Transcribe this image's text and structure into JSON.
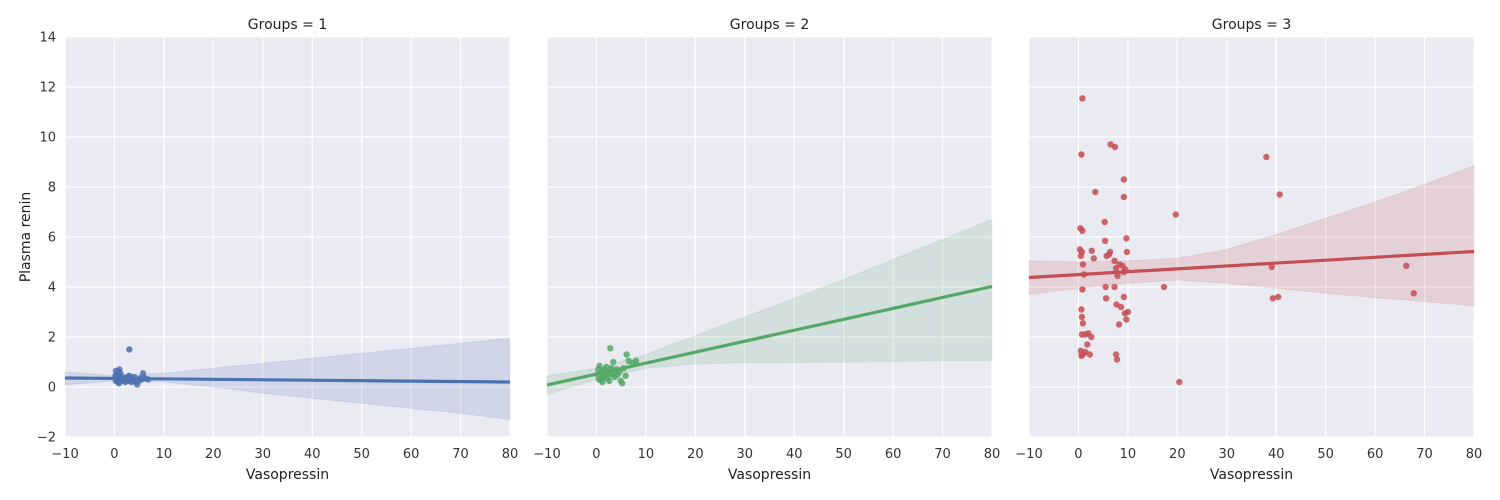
{
  "chart_data": {
    "type": "scatter",
    "ylabel": "Plasma renin",
    "xlim": [
      -10,
      80
    ],
    "ylim": [
      -2,
      14
    ],
    "x_ticks": [
      -10,
      0,
      10,
      20,
      30,
      40,
      50,
      60,
      70,
      80
    ],
    "y_ticks": [
      -2,
      0,
      2,
      4,
      6,
      8,
      10,
      12,
      14
    ],
    "grid": true,
    "panels": [
      {
        "title": "Groups = 1",
        "xlabel": "Vasopressin",
        "color": "#4c72b0",
        "fit_line": {
          "x": [
            -10,
            80
          ],
          "y": [
            0.36,
            0.2
          ]
        },
        "ci_band": {
          "x": [
            -10,
            0,
            10,
            20,
            30,
            40,
            50,
            60,
            70,
            80
          ],
          "lower": [
            0.08,
            0.25,
            0.2,
            0.0,
            -0.25,
            -0.45,
            -0.65,
            -0.85,
            -1.05,
            -1.3
          ],
          "upper": [
            0.6,
            0.45,
            0.55,
            0.75,
            0.95,
            1.15,
            1.35,
            1.55,
            1.75,
            1.95
          ]
        },
        "points": [
          [
            0.3,
            0.25
          ],
          [
            0.5,
            0.3
          ],
          [
            0.6,
            0.4
          ],
          [
            0.4,
            0.5
          ],
          [
            0.8,
            0.6
          ],
          [
            0.3,
            0.65
          ],
          [
            1.0,
            0.7
          ],
          [
            1.2,
            0.55
          ],
          [
            0.7,
            0.2
          ],
          [
            0.9,
            0.15
          ],
          [
            1.5,
            0.3
          ],
          [
            1.8,
            0.25
          ],
          [
            1.1,
            0.35
          ],
          [
            2.0,
            0.3
          ],
          [
            2.4,
            0.35
          ],
          [
            2.8,
            0.25
          ],
          [
            3.0,
            0.45
          ],
          [
            3.2,
            0.35
          ],
          [
            3.6,
            0.3
          ],
          [
            4.0,
            0.4
          ],
          [
            4.3,
            0.2
          ],
          [
            4.6,
            0.1
          ],
          [
            4.9,
            0.25
          ],
          [
            5.2,
            0.35
          ],
          [
            5.5,
            0.3
          ],
          [
            5.8,
            0.55
          ],
          [
            6.2,
            0.35
          ],
          [
            6.8,
            0.3
          ],
          [
            1.6,
            0.4
          ],
          [
            2.2,
            0.2
          ],
          [
            0.2,
            0.45
          ],
          [
            3.4,
            0.2
          ],
          [
            2.6,
            0.4
          ],
          [
            4.1,
            0.25
          ],
          [
            3.0,
            1.5
          ]
        ]
      },
      {
        "title": "Groups = 2",
        "xlabel": "Vasopressin",
        "color": "#55a868",
        "fit_line": {
          "x": [
            -10,
            80
          ],
          "y": [
            0.08,
            4.02
          ]
        },
        "ci_band": {
          "x": [
            -10,
            0,
            10,
            20,
            30,
            40,
            50,
            60,
            70,
            80
          ],
          "lower": [
            -0.3,
            0.3,
            0.75,
            0.92,
            0.97,
            0.98,
            1.0,
            1.02,
            1.05,
            1.05
          ],
          "upper": [
            0.45,
            0.75,
            1.3,
            2.05,
            2.8,
            3.55,
            4.3,
            5.1,
            5.9,
            6.7
          ]
        },
        "points": [
          [
            0.2,
            0.5
          ],
          [
            0.4,
            0.7
          ],
          [
            0.6,
            0.85
          ],
          [
            0.8,
            0.3
          ],
          [
            1.0,
            0.6
          ],
          [
            1.2,
            0.2
          ],
          [
            1.4,
            0.45
          ],
          [
            1.6,
            0.65
          ],
          [
            1.8,
            0.5
          ],
          [
            2.0,
            0.8
          ],
          [
            2.2,
            0.35
          ],
          [
            2.4,
            0.55
          ],
          [
            2.6,
            0.25
          ],
          [
            2.9,
            0.6
          ],
          [
            3.2,
            0.5
          ],
          [
            3.4,
            1.0
          ],
          [
            3.7,
            0.4
          ],
          [
            4.0,
            0.7
          ],
          [
            4.3,
            0.5
          ],
          [
            4.6,
            0.6
          ],
          [
            4.9,
            0.25
          ],
          [
            5.2,
            0.15
          ],
          [
            5.5,
            0.75
          ],
          [
            5.9,
            0.45
          ],
          [
            6.1,
            1.3
          ],
          [
            6.5,
            1.05
          ],
          [
            7.3,
            0.95
          ],
          [
            8.0,
            1.05
          ],
          [
            2.8,
            1.55
          ],
          [
            1.1,
            0.4
          ],
          [
            0.5,
            0.3
          ],
          [
            3.0,
            0.75
          ],
          [
            1.5,
            0.7
          ]
        ]
      },
      {
        "title": "Groups = 3",
        "xlabel": "Vasopressin",
        "color": "#c44e52",
        "fit_line": {
          "x": [
            -10,
            80
          ],
          "y": [
            4.38,
            5.42
          ]
        },
        "ci_band": {
          "x": [
            -10,
            0,
            10,
            20,
            30,
            40,
            50,
            60,
            70,
            80
          ],
          "lower": [
            3.7,
            3.95,
            4.15,
            4.28,
            4.15,
            3.95,
            3.75,
            3.58,
            3.42,
            3.25
          ],
          "upper": [
            5.05,
            5.0,
            5.05,
            5.15,
            5.5,
            6.1,
            6.75,
            7.4,
            8.1,
            8.85
          ]
        },
        "points": [
          [
            0.8,
            11.55
          ],
          [
            0.6,
            9.3
          ],
          [
            0.4,
            6.35
          ],
          [
            0.8,
            6.25
          ],
          [
            0.3,
            5.5
          ],
          [
            0.7,
            5.4
          ],
          [
            0.5,
            5.25
          ],
          [
            0.9,
            4.9
          ],
          [
            1.1,
            4.5
          ],
          [
            0.8,
            3.9
          ],
          [
            0.6,
            3.1
          ],
          [
            0.7,
            2.8
          ],
          [
            0.9,
            2.55
          ],
          [
            0.7,
            2.1
          ],
          [
            0.5,
            1.45
          ],
          [
            0.6,
            1.25
          ],
          [
            0.9,
            1.3
          ],
          [
            1.4,
            1.4
          ],
          [
            1.4,
            2.1
          ],
          [
            1.8,
            1.7
          ],
          [
            2.0,
            2.15
          ],
          [
            2.6,
            2.0
          ],
          [
            2.3,
            1.3
          ],
          [
            2.7,
            5.45
          ],
          [
            3.1,
            5.15
          ],
          [
            3.4,
            7.8
          ],
          [
            5.3,
            6.6
          ],
          [
            5.4,
            5.85
          ],
          [
            5.7,
            5.25
          ],
          [
            6.2,
            5.3
          ],
          [
            6.4,
            5.4
          ],
          [
            6.5,
            9.7
          ],
          [
            7.4,
            9.6
          ],
          [
            7.3,
            5.05
          ],
          [
            7.6,
            4.75
          ],
          [
            7.9,
            4.45
          ],
          [
            8.3,
            4.9
          ],
          [
            8.9,
            4.85
          ],
          [
            9.2,
            4.6
          ],
          [
            9.5,
            4.7
          ],
          [
            9.2,
            8.3
          ],
          [
            9.2,
            7.6
          ],
          [
            9.7,
            5.95
          ],
          [
            9.8,
            5.4
          ],
          [
            5.5,
            4.0
          ],
          [
            5.6,
            3.55
          ],
          [
            7.3,
            4.0
          ],
          [
            7.7,
            3.3
          ],
          [
            8.2,
            2.5
          ],
          [
            8.6,
            3.2
          ],
          [
            9.2,
            3.6
          ],
          [
            9.4,
            2.95
          ],
          [
            9.7,
            2.7
          ],
          [
            10.0,
            3.0
          ],
          [
            7.6,
            1.3
          ],
          [
            7.8,
            1.1
          ],
          [
            17.3,
            4.0
          ],
          [
            19.7,
            6.9
          ],
          [
            20.4,
            0.2
          ],
          [
            38.0,
            9.2
          ],
          [
            39.1,
            4.8
          ],
          [
            39.3,
            3.55
          ],
          [
            40.4,
            3.6
          ],
          [
            40.7,
            7.7
          ],
          [
            66.3,
            4.85
          ],
          [
            67.8,
            3.75
          ]
        ]
      }
    ]
  }
}
